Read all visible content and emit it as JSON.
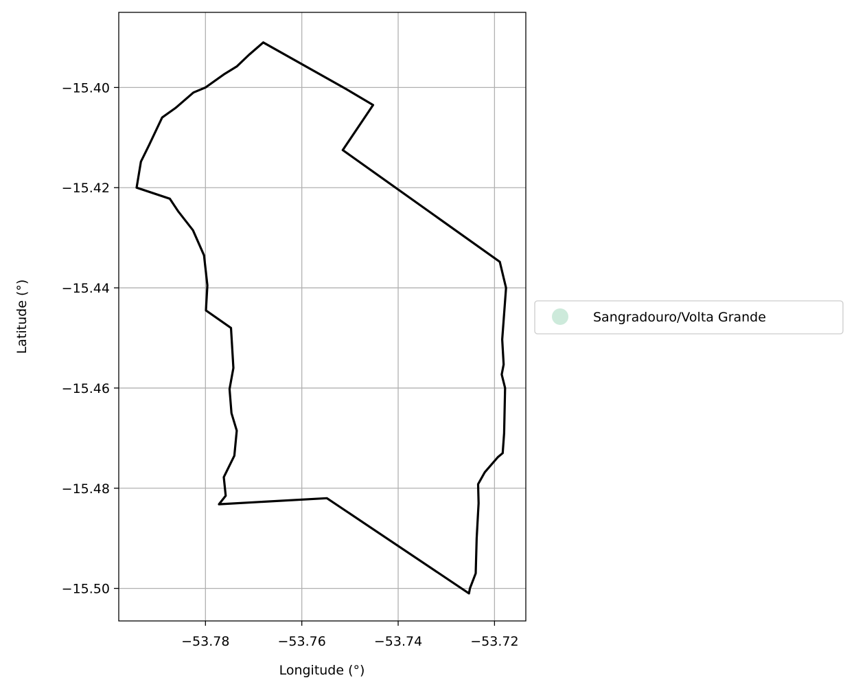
{
  "chart_data": {
    "type": "map",
    "title": "",
    "xlabel": "Longitude (°)",
    "ylabel": "Latitude (°)",
    "xlim": [
      -53.798,
      -53.7135
    ],
    "ylim": [
      -15.5065,
      -15.385
    ],
    "grid": true,
    "x_ticks": [
      -53.78,
      -53.76,
      -53.74,
      -53.72
    ],
    "x_tick_labels": [
      "−53.78",
      "−53.76",
      "−53.74",
      "−53.72"
    ],
    "y_ticks": [
      -15.4,
      -15.42,
      -15.44,
      -15.46,
      -15.48,
      -15.5
    ],
    "y_tick_labels": [
      "−15.40",
      "−15.42",
      "−15.44",
      "−15.46",
      "−15.48",
      "−15.50"
    ],
    "legend": {
      "placement": "right",
      "entries": [
        {
          "label": "Sangradouro/Volta Grande",
          "color": "#cdeadb",
          "marker": "circle"
        }
      ]
    },
    "boundary": {
      "name": "Sangradouro/Volta Grande",
      "stroke": "#000000",
      "lon": [
        -53.768,
        -53.7508,
        -53.7452,
        -53.7515,
        -53.7189,
        -53.7176,
        -53.7184,
        -53.7181,
        -53.7185,
        -53.7178,
        -53.718,
        -53.7183,
        -53.7193,
        -53.722,
        -53.7234,
        -53.7233,
        -53.7237,
        -53.7239,
        -53.7251,
        -53.7253,
        -53.7548,
        -53.7772,
        -53.7758,
        -53.7762,
        -53.774,
        -53.7735,
        -53.7746,
        -53.775,
        -53.7742,
        -53.7747,
        -53.7799,
        -53.7796,
        -53.7803,
        -53.7826,
        -53.7856,
        -53.7874,
        -53.7943,
        -53.7934,
        -53.7917,
        -53.789,
        -53.7861,
        -53.7825,
        -53.78,
        -53.7762,
        -53.7735,
        -53.771,
        -53.768
      ],
      "lat": [
        -15.391,
        -15.4003,
        -15.4035,
        -15.4125,
        -15.4348,
        -15.44,
        -15.4503,
        -15.4553,
        -15.4573,
        -15.46,
        -15.469,
        -15.473,
        -15.4738,
        -15.4768,
        -15.4792,
        -15.483,
        -15.49,
        -15.497,
        -15.5,
        -15.501,
        -15.482,
        -15.4832,
        -15.4815,
        -15.4778,
        -15.4735,
        -15.4685,
        -15.465,
        -15.4602,
        -15.456,
        -15.448,
        -15.4445,
        -15.4395,
        -15.4335,
        -15.4285,
        -15.4248,
        -15.4222,
        -15.42,
        -15.4148,
        -15.4115,
        -15.406,
        -15.404,
        -15.401,
        -15.4,
        -15.3974,
        -15.3958,
        -15.3935,
        -15.391
      ]
    }
  }
}
